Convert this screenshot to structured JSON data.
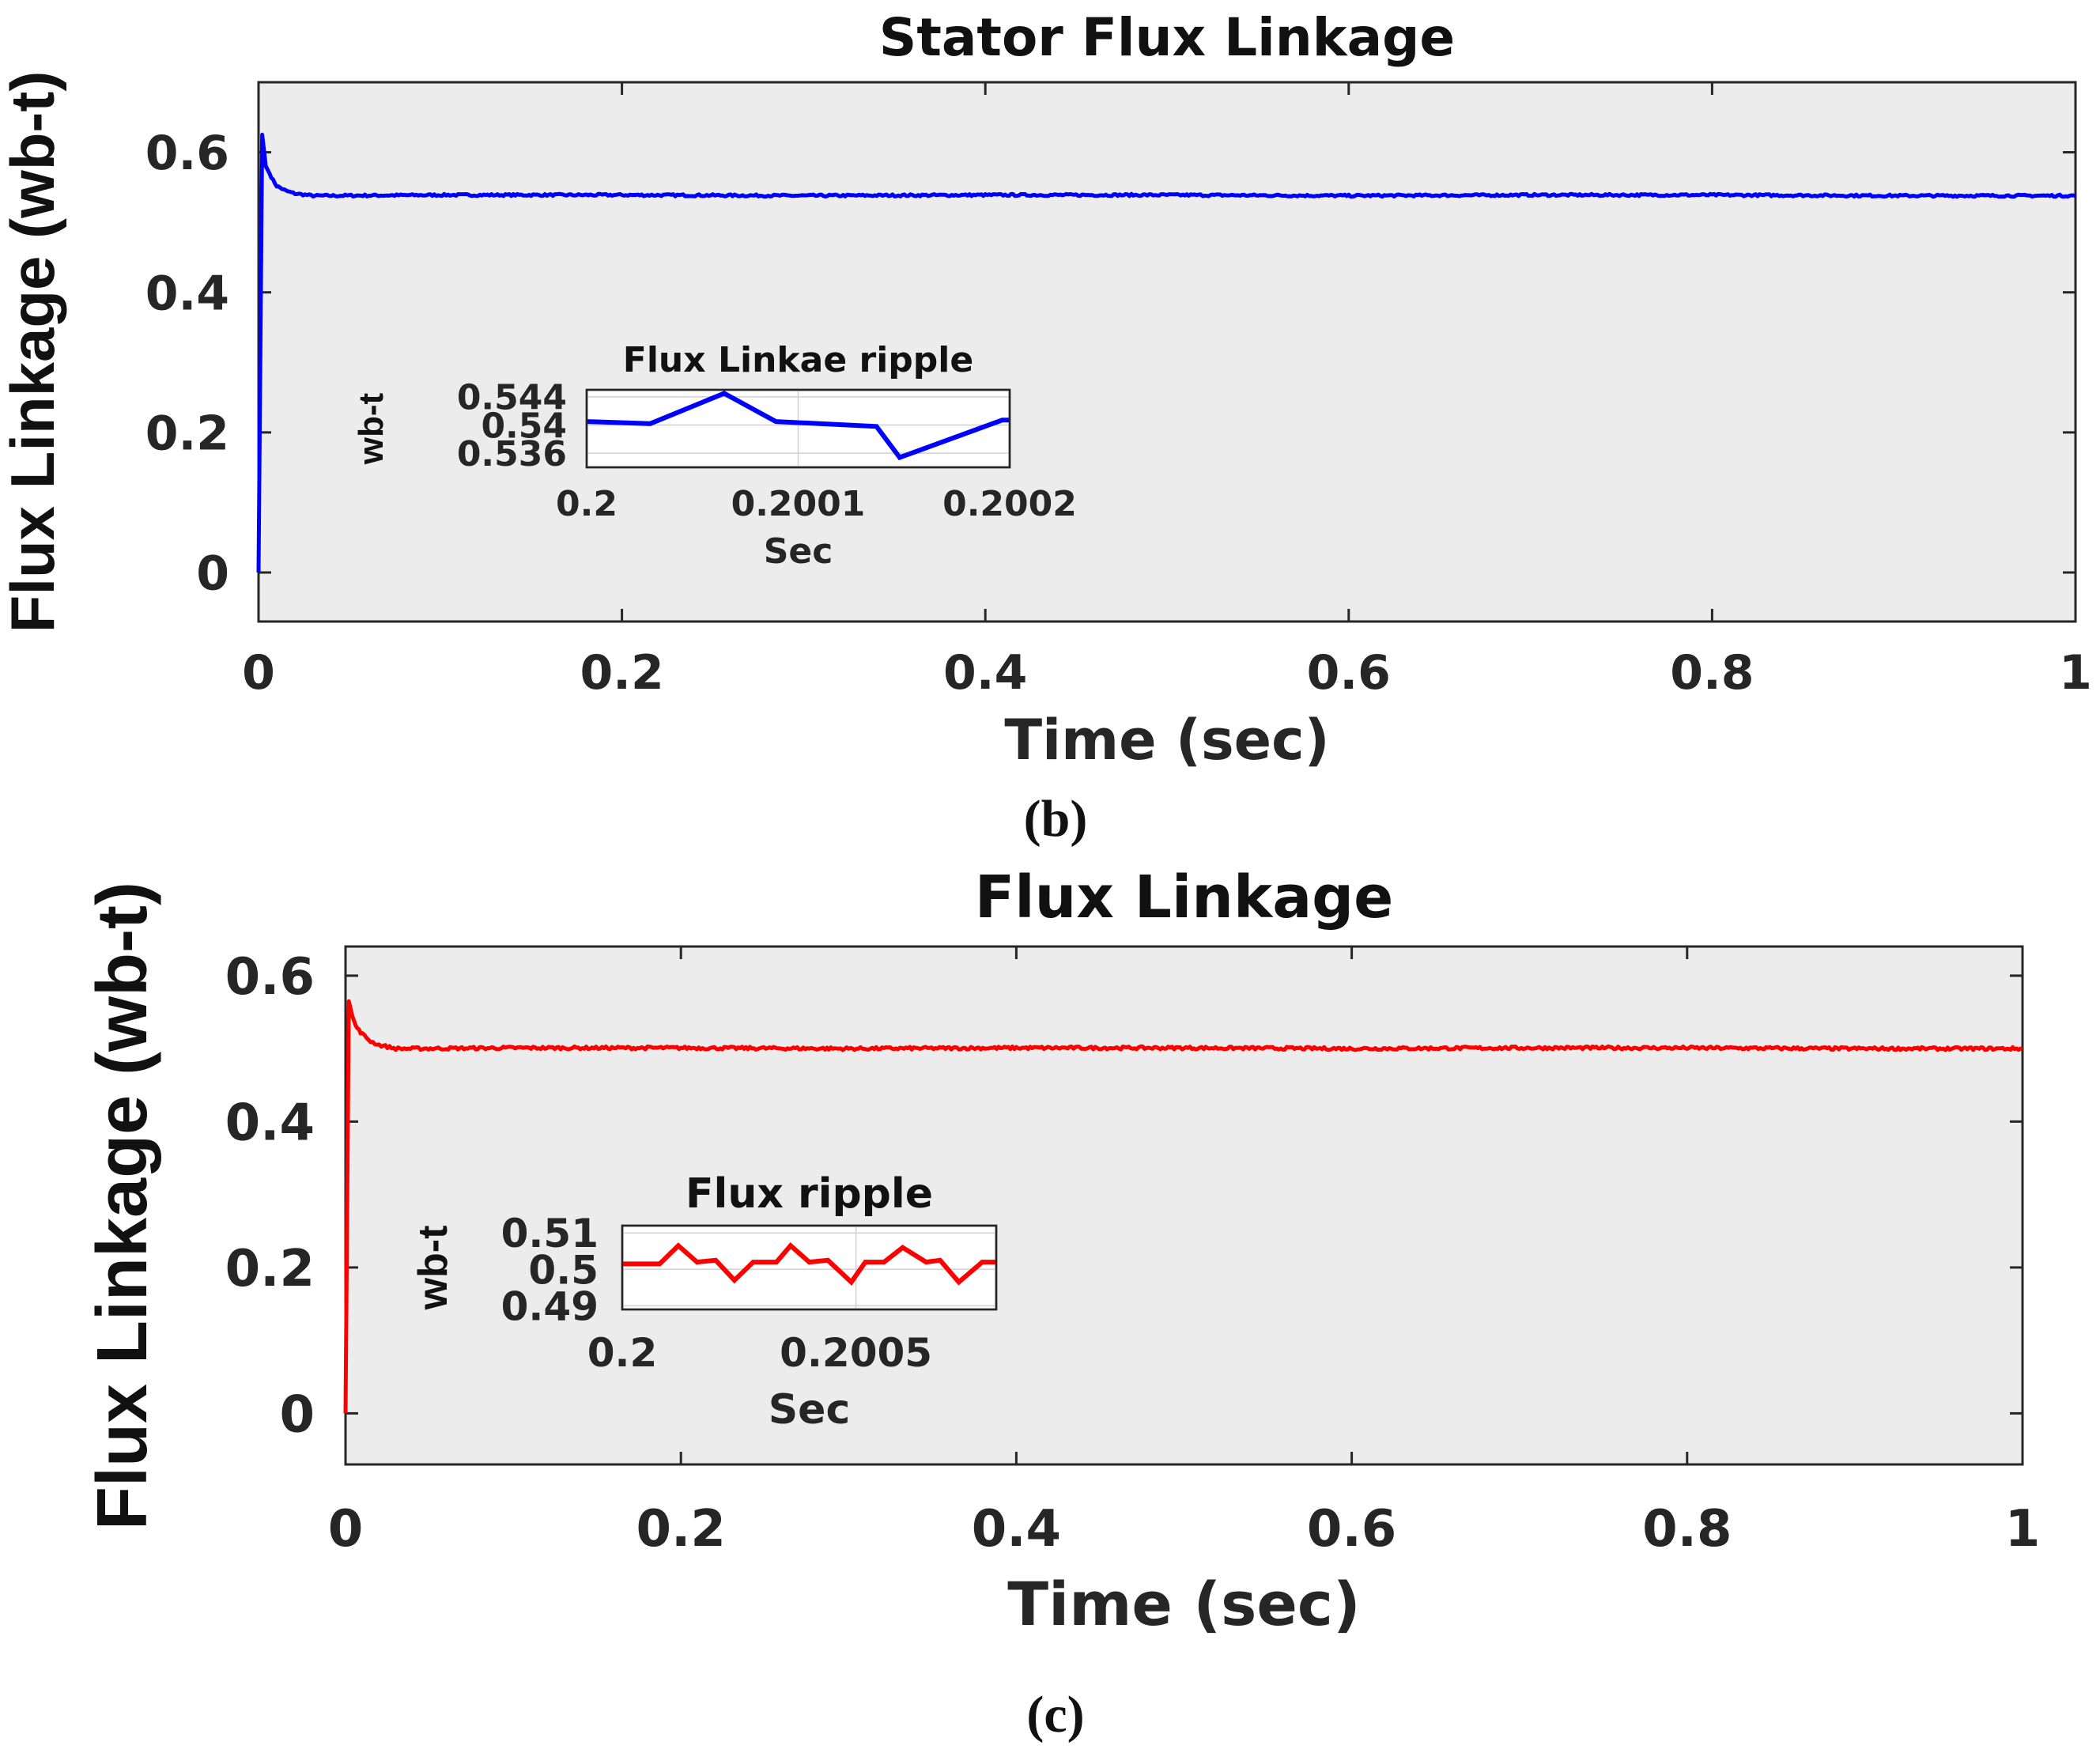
{
  "chart_data": [
    {
      "type": "line",
      "title": "Stator Flux Linkage",
      "xlabel": "Time (sec)",
      "ylabel": "Flux Linkage (wb-t)",
      "caption": "(b)",
      "xlim": [
        0,
        1
      ],
      "ylim": [
        -0.07,
        0.7
      ],
      "xticks": [
        0,
        0.2,
        0.4,
        0.6,
        0.8,
        1
      ],
      "xtick_labels": [
        "0",
        "0.2",
        "0.4",
        "0.6",
        "0.8",
        "1"
      ],
      "yticks": [
        0,
        0.2,
        0.4,
        0.6
      ],
      "ytick_labels": [
        "0",
        "0.2",
        "0.4",
        "0.6"
      ],
      "grid": false,
      "color": "#0000ff",
      "series": [
        {
          "x": [
            0,
            0.002,
            0.004,
            0.006,
            0.008,
            0.01,
            0.015,
            0.02,
            0.03,
            0.04,
            0.1,
            0.2,
            0.3,
            0.4,
            0.5,
            0.6,
            0.7,
            0.8,
            0.9,
            1.0
          ],
          "y": [
            0,
            0.625,
            0.58,
            0.57,
            0.56,
            0.552,
            0.545,
            0.541,
            0.538,
            0.538,
            0.539,
            0.539,
            0.538,
            0.539,
            0.539,
            0.538,
            0.539,
            0.539,
            0.538,
            0.538
          ],
          "ripple": 0.003
        }
      ],
      "inset": {
        "type": "line",
        "title": "Flux Linkae ripple",
        "xlabel": "Sec",
        "ylabel": "wb-t",
        "xlim": [
          0.2,
          0.2002
        ],
        "ylim": [
          0.534,
          0.545
        ],
        "xticks": [
          0.2,
          0.2001,
          0.2002
        ],
        "xtick_labels": [
          "0.2",
          "0.2001",
          "0.2002"
        ],
        "yticks": [
          0.536,
          0.54,
          0.544
        ],
        "ytick_labels": [
          "0.536",
          "0.54",
          "0.544"
        ],
        "grid": true,
        "x": [
          0.2,
          0.20003,
          0.200065,
          0.2000895,
          0.200137,
          0.200148,
          0.2001965,
          0.2002
        ],
        "y": [
          0.5405,
          0.5402,
          0.5445,
          0.5405,
          0.5398,
          0.5354,
          0.5407,
          0.5407
        ]
      }
    },
    {
      "type": "line",
      "title": "Flux Linkage",
      "xlabel": "Time (sec)",
      "ylabel": "Flux Linkage (wb-t)",
      "caption": "(c)",
      "xlim": [
        0,
        1
      ],
      "ylim": [
        -0.07,
        0.64
      ],
      "xticks": [
        0,
        0.2,
        0.4,
        0.6,
        0.8,
        1
      ],
      "xtick_labels": [
        "0",
        "0.2",
        "0.4",
        "0.6",
        "0.8",
        "1"
      ],
      "yticks": [
        0,
        0.2,
        0.4,
        0.6
      ],
      "ytick_labels": [
        "0",
        "0.2",
        "0.4",
        "0.6"
      ],
      "grid": false,
      "color": "#ff0000",
      "series": [
        {
          "x": [
            0,
            0.002,
            0.004,
            0.006,
            0.008,
            0.01,
            0.015,
            0.02,
            0.03,
            0.04,
            0.1,
            0.2,
            0.3,
            0.4,
            0.5,
            0.6,
            0.7,
            0.8,
            0.9,
            1.0
          ],
          "y": [
            0,
            0.565,
            0.545,
            0.532,
            0.525,
            0.52,
            0.51,
            0.505,
            0.5,
            0.5,
            0.501,
            0.501,
            0.5,
            0.501,
            0.501,
            0.5,
            0.501,
            0.501,
            0.5,
            0.5
          ],
          "ripple": 0.004
        }
      ],
      "inset": {
        "type": "line",
        "title": "Flux ripple",
        "xlabel": "Sec",
        "ylabel": "wb-t",
        "xlim": [
          0.2,
          0.2008
        ],
        "ylim": [
          0.489,
          0.512
        ],
        "xticks": [
          0.2,
          0.2005
        ],
        "xtick_labels": [
          "0.2",
          "0.2005"
        ],
        "yticks": [
          0.49,
          0.5,
          0.51
        ],
        "ytick_labels": [
          "0.49",
          "0.5",
          "0.51"
        ],
        "grid": true,
        "x": [
          0.2,
          0.20008,
          0.20012,
          0.20016,
          0.2002,
          0.20024,
          0.20028,
          0.20033,
          0.20036,
          0.2004,
          0.20044,
          0.20049,
          0.20052,
          0.20056,
          0.2006,
          0.20065,
          0.20068,
          0.20072,
          0.20077,
          0.2008
        ],
        "y": [
          0.5015,
          0.5015,
          0.5065,
          0.502,
          0.5025,
          0.497,
          0.502,
          0.502,
          0.5065,
          0.502,
          0.5025,
          0.4965,
          0.502,
          0.502,
          0.506,
          0.502,
          0.5025,
          0.4965,
          0.502,
          0.502
        ]
      }
    }
  ]
}
